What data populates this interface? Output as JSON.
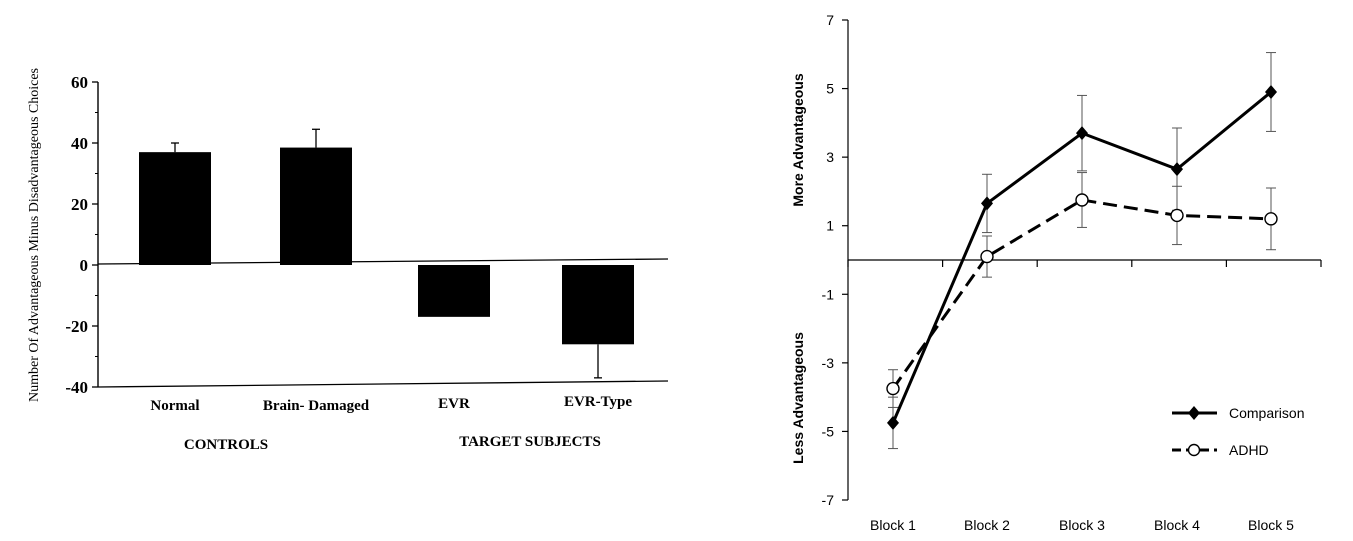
{
  "chart_data": [
    {
      "type": "bar",
      "ylabel": "Number Of Advantageous Minus Disadvantageous Choices",
      "ylim": [
        -40,
        60
      ],
      "yticks": [
        60,
        40,
        20,
        0,
        -20,
        -40
      ],
      "categories": [
        "Normal",
        "Brain- Damaged",
        "EVR",
        "EVR-Type"
      ],
      "values": [
        37,
        38.5,
        -17,
        -26
      ],
      "error_bars": [
        3,
        6,
        0,
        11
      ],
      "groups": [
        {
          "label": "CONTROLS",
          "members": [
            "Normal",
            "Brain- Damaged"
          ]
        },
        {
          "label": "TARGET SUBJECTS",
          "members": [
            "EVR",
            "EVR-Type"
          ]
        }
      ],
      "bar_color": "#000000"
    },
    {
      "type": "line",
      "categories": [
        "Block 1",
        "Block 2",
        "Block 3",
        "Block 4",
        "Block 5"
      ],
      "ylim": [
        -7,
        7
      ],
      "yticks": [
        7,
        5,
        3,
        1,
        -1,
        -3,
        -5,
        -7
      ],
      "ylabel_upper": "More Advantageous",
      "ylabel_lower": "Less Advantageous",
      "legend_position": "bottom-right",
      "series": [
        {
          "name": "Comparison",
          "values": [
            -4.75,
            1.65,
            3.7,
            2.65,
            4.9
          ],
          "errors": [
            0.75,
            0.85,
            1.1,
            1.2,
            1.15
          ],
          "style": "solid",
          "marker": "diamond"
        },
        {
          "name": "ADHD",
          "values": [
            -3.75,
            0.1,
            1.75,
            1.3,
            1.2
          ],
          "errors": [
            0.55,
            0.6,
            0.8,
            0.85,
            0.9
          ],
          "style": "dashed",
          "marker": "open-circle"
        }
      ]
    }
  ]
}
